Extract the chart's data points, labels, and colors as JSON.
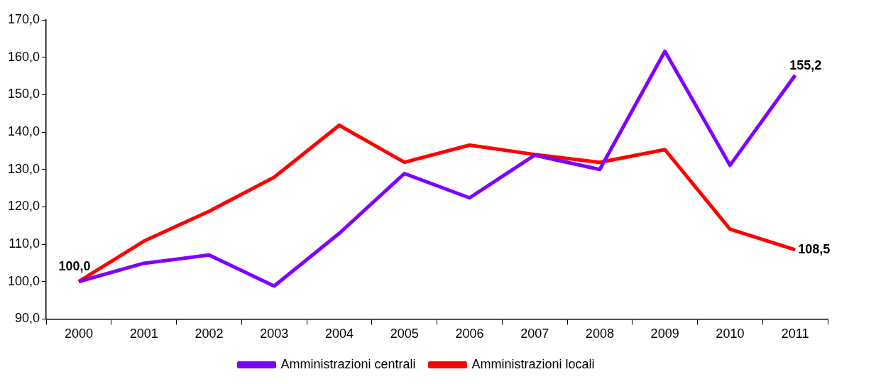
{
  "chart_data": {
    "type": "line",
    "categories": [
      "2000",
      "2001",
      "2002",
      "2003",
      "2004",
      "2005",
      "2006",
      "2007",
      "2008",
      "2009",
      "2010",
      "2011"
    ],
    "series": [
      {
        "name": "Amministrazioni centrali",
        "color": "#7f00ff",
        "values": [
          100,
          104.9,
          107.1,
          98.8,
          112.9,
          128.9,
          122.4,
          133.8,
          130.0,
          161.6,
          131.1,
          155.2
        ]
      },
      {
        "name": "Amministrazioni locali",
        "color": "#ff0000",
        "values": [
          100,
          110.8,
          118.8,
          127.9,
          141.8,
          131.9,
          136.5,
          134.0,
          131.9,
          135.3,
          114.0,
          108.5
        ]
      }
    ],
    "ylim": [
      90,
      170
    ],
    "yticks": [
      {
        "value": 90,
        "label": "90,0"
      },
      {
        "value": 100,
        "label": "100,0"
      },
      {
        "value": 110,
        "label": "110,0"
      },
      {
        "value": 120,
        "label": "120,0"
      },
      {
        "value": 130,
        "label": "130,0"
      },
      {
        "value": 140,
        "label": "140,0"
      },
      {
        "value": 150,
        "label": "150,0"
      },
      {
        "value": 160,
        "label": "160,0"
      },
      {
        "value": 170,
        "label": "170,0"
      }
    ],
    "annotations": [
      {
        "text": "100,0",
        "x": "2000",
        "y": 100
      },
      {
        "text": "155,2",
        "x": "2011",
        "y": 155.2
      },
      {
        "text": "108,5",
        "x": "2011",
        "y": 108.5
      }
    ],
    "grid": false,
    "legend": "bottom",
    "marker": "none",
    "line_style": "solid"
  }
}
